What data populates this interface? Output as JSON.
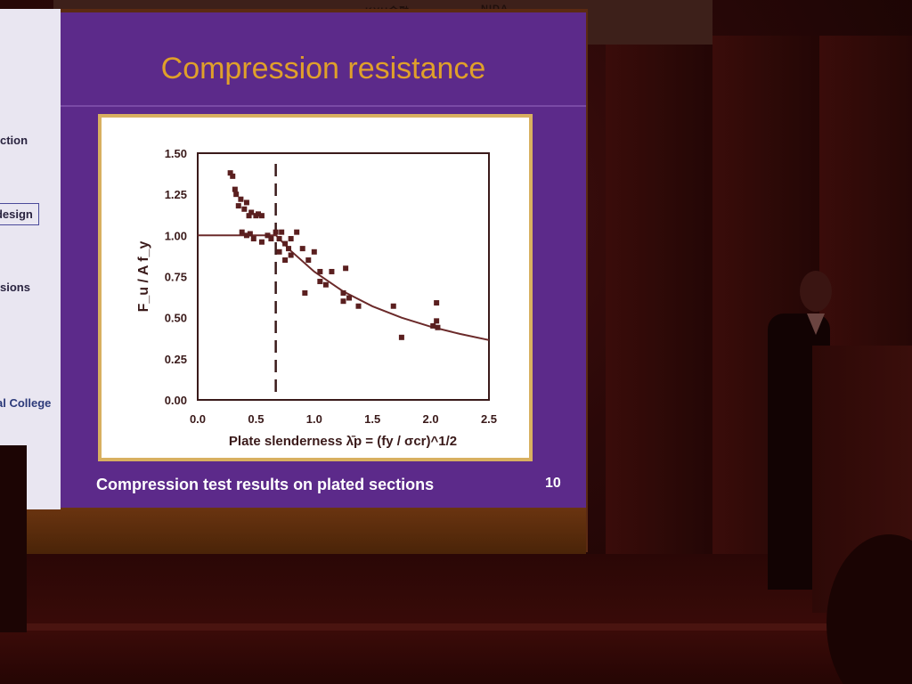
{
  "banner": {
    "texts": [
      "KYH金融",
      "NIDA"
    ]
  },
  "sidebar": {
    "items": [
      "ction",
      "t design",
      "sions",
      "al College"
    ]
  },
  "slide": {
    "title": "Compression resistance",
    "caption": "Compression test results on plated sections",
    "page_number": "10"
  },
  "chart_data": {
    "type": "scatter",
    "ylabel": "F_u / A f_y",
    "xlabel": "Plate slenderness λ̄p = (fy / σcr)^1/2",
    "xlim": [
      0.0,
      2.5
    ],
    "ylim": [
      0.0,
      1.5
    ],
    "x_ticks": [
      "0.0",
      "0.5",
      "1.0",
      "1.5",
      "2.0",
      "2.5"
    ],
    "y_ticks": [
      "0.00",
      "0.25",
      "0.50",
      "0.75",
      "1.00",
      "1.25",
      "1.50"
    ],
    "reference_line_x": 0.67,
    "curve": {
      "x": [
        0.0,
        0.673,
        0.8,
        1.0,
        1.25,
        1.5,
        1.75,
        2.0,
        2.25,
        2.5
      ],
      "y": [
        1.0,
        1.0,
        0.906,
        0.78,
        0.659,
        0.569,
        0.5,
        0.445,
        0.401,
        0.364
      ]
    },
    "points": {
      "x": [
        0.28,
        0.3,
        0.32,
        0.33,
        0.35,
        0.37,
        0.4,
        0.42,
        0.44,
        0.46,
        0.5,
        0.52,
        0.55,
        0.38,
        0.42,
        0.45,
        0.48,
        0.55,
        0.6,
        0.63,
        0.67,
        0.7,
        0.72,
        0.75,
        0.78,
        0.8,
        0.85,
        0.7,
        0.75,
        0.8,
        0.9,
        0.95,
        1.0,
        1.05,
        0.92,
        1.05,
        1.1,
        1.15,
        1.25,
        1.25,
        1.3,
        1.27,
        1.38,
        1.68,
        1.75,
        2.02,
        2.05,
        2.06,
        2.05
      ],
      "y": [
        1.38,
        1.36,
        1.28,
        1.25,
        1.18,
        1.22,
        1.16,
        1.2,
        1.12,
        1.14,
        1.12,
        1.13,
        1.12,
        1.02,
        1.0,
        1.01,
        0.98,
        0.96,
        1.0,
        0.98,
        1.02,
        0.98,
        1.02,
        0.95,
        0.92,
        0.98,
        1.02,
        0.9,
        0.85,
        0.88,
        0.92,
        0.85,
        0.9,
        0.78,
        0.65,
        0.72,
        0.7,
        0.78,
        0.65,
        0.6,
        0.62,
        0.8,
        0.57,
        0.57,
        0.38,
        0.45,
        0.59,
        0.44,
        0.48
      ]
    }
  },
  "colors": {
    "slide_bg": "#5c2a8a",
    "title": "#e0a02a",
    "marker": "#5a1f1f",
    "curve": "#6b2a2a"
  }
}
